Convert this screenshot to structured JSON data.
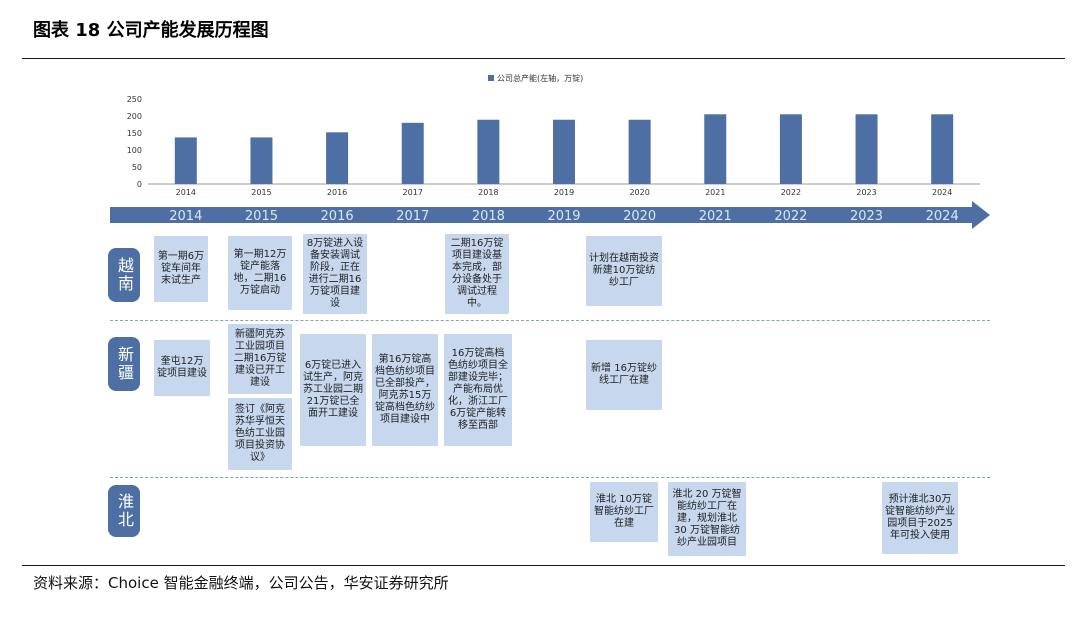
{
  "figure_title": "图表 18 公司产能发展历程图",
  "source": "资料来源：Choice 智能金融终端，公司公告，华安证券研究所",
  "colors": {
    "bar": "#4d6fa3",
    "arrow": "#4d6fa3",
    "box": "#c6d7ee",
    "region": "#4d6fa3"
  },
  "chart_data": {
    "type": "bar",
    "categories": [
      "2014",
      "2015",
      "2016",
      "2017",
      "2018",
      "2019",
      "2020",
      "2021",
      "2022",
      "2023",
      "2024"
    ],
    "series": [
      {
        "name": "公司总产能(左轴，万锭)",
        "values": [
          137,
          137,
          152,
          180,
          189,
          189,
          189,
          205,
          205,
          205,
          205
        ]
      }
    ],
    "ylim": [
      0,
      250
    ],
    "yticks": [
      "0",
      "50",
      "100",
      "150",
      "200",
      "250"
    ],
    "legend_position": "top"
  },
  "timeline": {
    "years": [
      "2014",
      "2015",
      "2016",
      "2017",
      "2018",
      "2019",
      "2020",
      "2021",
      "2022",
      "2023",
      "2024"
    ]
  },
  "regions": {
    "vietnam": "越南",
    "xinjiang": "新疆",
    "huaibei": "淮北"
  },
  "events": {
    "vn_2014": "第一期6万锭车间年末试生产",
    "vn_2015": "第一期12万锭产能落地，二期16万锭启动",
    "vn_2016": "8万锭进入设备安装调试阶段，正在进行二期16万锭项目建设",
    "vn_2018": "二期16万锭项目建设基本完成，部分设备处于调试过程中。",
    "vn_2020": "计划在越南投资新建10万锭纺纱工厂",
    "xj_2014": "奎屯12万锭项目建设",
    "xj_2015a": "新疆阿克苏工业园项目二期16万锭建设已开工建设",
    "xj_2015b": "签订《阿克苏华孚恒天色纺工业园项目投资协议》",
    "xj_2016": "6万锭已进入试生产，阿克苏工业园二期21万锭已全面开工建设",
    "xj_2017": "第16万锭高档色纺纱项目已全部投产，阿克苏15万锭高档色纺纱项目建设中",
    "xj_2018": "16万锭高档色纺纱项目全部建设完毕；产能布局优化，浙江工厂6万锭产能转移至西部",
    "xj_2020": "新增 16万锭纱线工厂在建",
    "hb_2020": "淮北 10万锭智能纺纱工厂在建",
    "hb_2021": "淮北 20 万锭智能纺纱工厂在建，规划淮北30 万锭智能纺纱产业园项目",
    "hb_2024": "预计淮北30万锭智能纺纱产业园项目于2025年可投入使用"
  }
}
